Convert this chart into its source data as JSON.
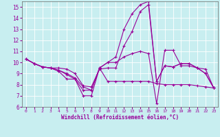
{
  "title": "",
  "xlabel": "Windchill (Refroidissement éolien,°C)",
  "xlim": [
    -0.5,
    23.5
  ],
  "ylim": [
    6,
    15.5
  ],
  "xticks": [
    0,
    1,
    2,
    3,
    4,
    5,
    6,
    7,
    8,
    9,
    10,
    11,
    12,
    13,
    14,
    15,
    16,
    17,
    18,
    19,
    20,
    21,
    22,
    23
  ],
  "yticks": [
    6,
    7,
    8,
    9,
    10,
    11,
    12,
    13,
    14,
    15
  ],
  "bg_color": "#c8eef0",
  "grid_color": "#ffffff",
  "line_color": "#990099",
  "line_width": 0.8,
  "marker": "+",
  "marker_size": 3,
  "marker_ew": 0.8,
  "lines": [
    [
      10.3,
      9.9,
      9.6,
      9.5,
      9.5,
      9.4,
      9.0,
      7.9,
      7.8,
      9.4,
      9.5,
      9.5,
      11.5,
      12.8,
      14.6,
      15.2,
      8.3,
      9.7,
      9.6,
      9.9,
      9.9,
      9.5,
      9.0,
      7.7
    ],
    [
      10.3,
      9.9,
      9.6,
      9.5,
      9.2,
      8.5,
      8.5,
      7.0,
      7.0,
      9.5,
      8.3,
      8.3,
      8.3,
      8.3,
      8.3,
      8.3,
      8.1,
      8.0,
      8.0,
      8.0,
      8.0,
      7.9,
      7.8,
      7.7
    ],
    [
      10.3,
      9.9,
      9.6,
      9.5,
      9.3,
      8.9,
      8.5,
      7.5,
      7.5,
      9.5,
      10.0,
      10.0,
      10.5,
      10.8,
      11.0,
      10.8,
      6.3,
      11.1,
      11.1,
      9.7,
      9.7,
      9.5,
      9.4,
      7.7
    ],
    [
      10.3,
      9.9,
      9.6,
      9.5,
      9.3,
      9.0,
      8.6,
      7.8,
      7.5,
      9.5,
      10.0,
      10.5,
      13.0,
      14.4,
      15.2,
      15.5,
      8.3,
      9.7,
      9.6,
      9.9,
      9.9,
      9.5,
      9.0,
      7.7
    ]
  ]
}
